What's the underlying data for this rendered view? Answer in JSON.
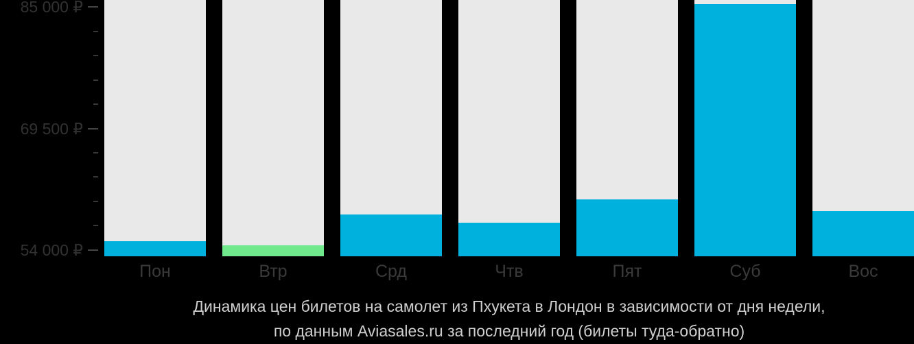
{
  "chart_data": {
    "type": "bar",
    "title": "Динамика цен билетов на самолет из Пхукета в Лондон в зависимости от дня недели, по данным Aviasales.ru за последний год (билеты туда-обратно)",
    "title_lines": [
      "Динамика цен билетов на самолет из Пхукета в Лондон в зависимости от дня недели,",
      "по данным Aviasales.ru за последний год (билеты туда-обратно)"
    ],
    "categories": [
      "Пон",
      "Втр",
      "Срд",
      "Чтв",
      "Пят",
      "Суб",
      "Вос"
    ],
    "values": [
      55100,
      54600,
      58500,
      57500,
      60500,
      85400,
      59000
    ],
    "unit": "₽",
    "bar_colors": [
      "blue",
      "green",
      "blue",
      "blue",
      "blue",
      "blue",
      "blue"
    ],
    "xlabel": "",
    "ylabel": "",
    "grid": false,
    "legend": null,
    "y_axis": {
      "min": 53200,
      "max": 85900,
      "major_ticks": [
        {
          "value": 54000,
          "label": "54 000 ₽"
        },
        {
          "value": 69500,
          "label": "69 500 ₽"
        },
        {
          "value": 85000,
          "label": "85 000 ₽"
        }
      ],
      "minor_tick_step": 3100
    },
    "colors": {
      "blue": "#00b1dd",
      "green": "#6fe98b",
      "track": "#e9e9e9",
      "background": "#000000",
      "y_label": "#323232",
      "x_label": "#3a3a3a",
      "tick_major": "#454545",
      "tick_minor": "#383838",
      "caption": "#cfcfcf"
    }
  }
}
